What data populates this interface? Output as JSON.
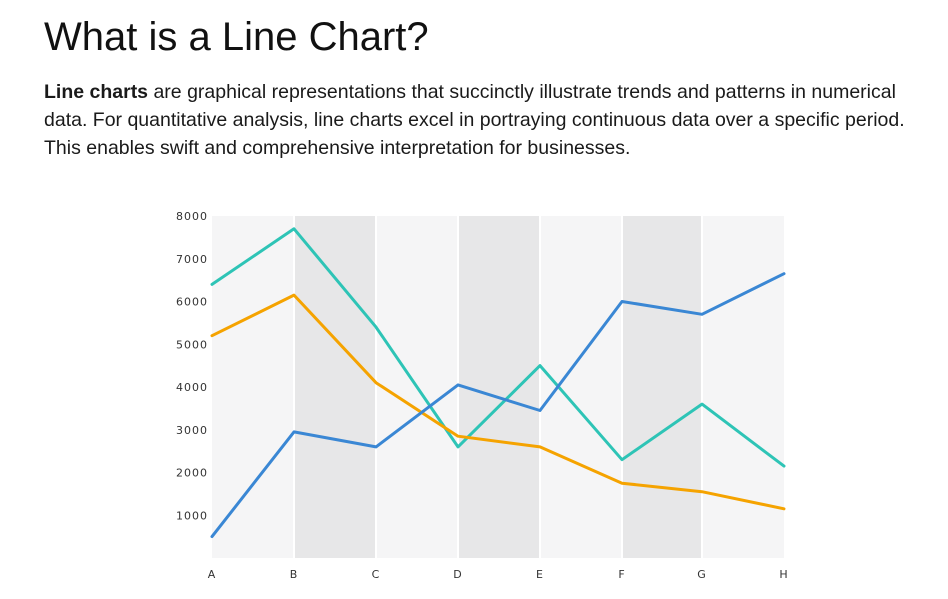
{
  "heading": {
    "title": "What is a Line Chart?",
    "intro_bold": "Line charts",
    "intro_rest": " are graphical representations that succinctly illustrate trends and patterns in numerical data. For quantitative analysis, line charts excel in portraying continuous data over a specific period. This enables swift and comprehensive interpretation for businesses."
  },
  "chart_data": {
    "type": "line",
    "title": "",
    "xlabel": "",
    "ylabel": "",
    "categories": [
      "A",
      "B",
      "C",
      "D",
      "E",
      "F",
      "G",
      "H"
    ],
    "ylim": [
      0,
      8000
    ],
    "yticks": [
      1000,
      2000,
      3000,
      4000,
      5000,
      6000,
      7000,
      8000
    ],
    "grid": "alternating vertical bands",
    "legend": "none",
    "series": [
      {
        "color": "#2ec4b6",
        "values": [
          6400,
          7700,
          5400,
          2600,
          4500,
          2300,
          3600,
          2150
        ]
      },
      {
        "color": "#f5a300",
        "values": [
          5200,
          6150,
          4100,
          2850,
          2600,
          1750,
          1550,
          1150
        ]
      },
      {
        "color": "#3a87d4",
        "values": [
          500,
          2950,
          2600,
          4050,
          3450,
          6000,
          5700,
          6650
        ]
      }
    ]
  }
}
